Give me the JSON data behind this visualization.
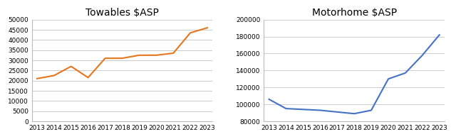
{
  "towables": {
    "title": "Towables $ASP",
    "years": [
      2013,
      2014,
      2015,
      2016,
      2017,
      2018,
      2019,
      2020,
      2021,
      2022,
      2023
    ],
    "values": [
      21000,
      22500,
      27000,
      21500,
      31000,
      31000,
      32500,
      32500,
      33500,
      43500,
      46000
    ],
    "color": "#E8761A",
    "ylim": [
      0,
      50000
    ],
    "yticks": [
      0,
      5000,
      10000,
      15000,
      20000,
      25000,
      30000,
      35000,
      40000,
      45000,
      50000
    ]
  },
  "motorhome": {
    "title": "Motorhome $ASP",
    "years": [
      2013,
      2014,
      2015,
      2016,
      2017,
      2018,
      2019,
      2020,
      2021,
      2022,
      2023
    ],
    "values": [
      106000,
      95000,
      94000,
      93000,
      91000,
      89000,
      93000,
      130000,
      137000,
      158000,
      182000
    ],
    "color": "#4472C4",
    "ylim": [
      80000,
      200000
    ],
    "yticks": [
      80000,
      100000,
      120000,
      140000,
      160000,
      180000,
      200000
    ]
  },
  "background_color": "#ffffff",
  "grid_color": "#cccccc",
  "title_fontsize": 10,
  "tick_fontsize": 6.5,
  "line_width": 1.5
}
